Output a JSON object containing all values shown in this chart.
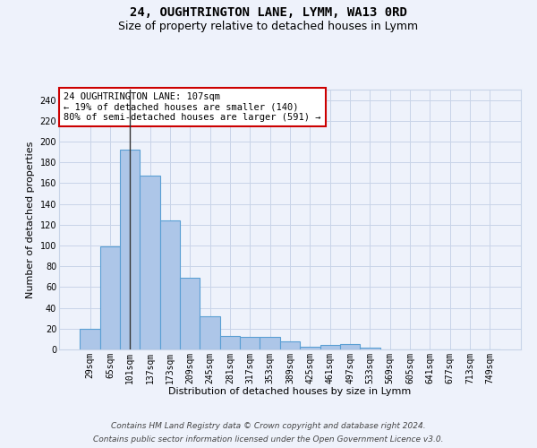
{
  "title_line1": "24, OUGHTRINGTON LANE, LYMM, WA13 0RD",
  "title_line2": "Size of property relative to detached houses in Lymm",
  "xlabel": "Distribution of detached houses by size in Lymm",
  "ylabel": "Number of detached properties",
  "footer_line1": "Contains HM Land Registry data © Crown copyright and database right 2024.",
  "footer_line2": "Contains public sector information licensed under the Open Government Licence v3.0.",
  "bar_labels": [
    "29sqm",
    "65sqm",
    "101sqm",
    "137sqm",
    "173sqm",
    "209sqm",
    "245sqm",
    "281sqm",
    "317sqm",
    "353sqm",
    "389sqm",
    "425sqm",
    "461sqm",
    "497sqm",
    "533sqm",
    "569sqm",
    "605sqm",
    "641sqm",
    "677sqm",
    "713sqm",
    "749sqm"
  ],
  "bar_values": [
    20,
    99,
    192,
    167,
    124,
    69,
    32,
    13,
    12,
    12,
    8,
    3,
    4,
    5,
    2,
    0,
    0,
    0,
    0,
    0,
    0
  ],
  "bar_color": "#adc6e8",
  "bar_edge_color": "#5a9fd4",
  "annotation_text": "24 OUGHTRINGTON LANE: 107sqm\n← 19% of detached houses are smaller (140)\n80% of semi-detached houses are larger (591) →",
  "vline_bar_index": 2,
  "ylim": [
    0,
    250
  ],
  "yticks": [
    0,
    20,
    40,
    60,
    80,
    100,
    120,
    140,
    160,
    180,
    200,
    220,
    240
  ],
  "bg_color": "#eef2fb",
  "grid_color": "#c8d4e8",
  "annotation_box_color": "#ffffff",
  "annotation_box_edge": "#cc0000",
  "vline_color": "#333333",
  "title_fontsize": 10,
  "subtitle_fontsize": 9,
  "axis_label_fontsize": 8,
  "tick_fontsize": 7,
  "annotation_fontsize": 7.5,
  "footer_fontsize": 6.5
}
